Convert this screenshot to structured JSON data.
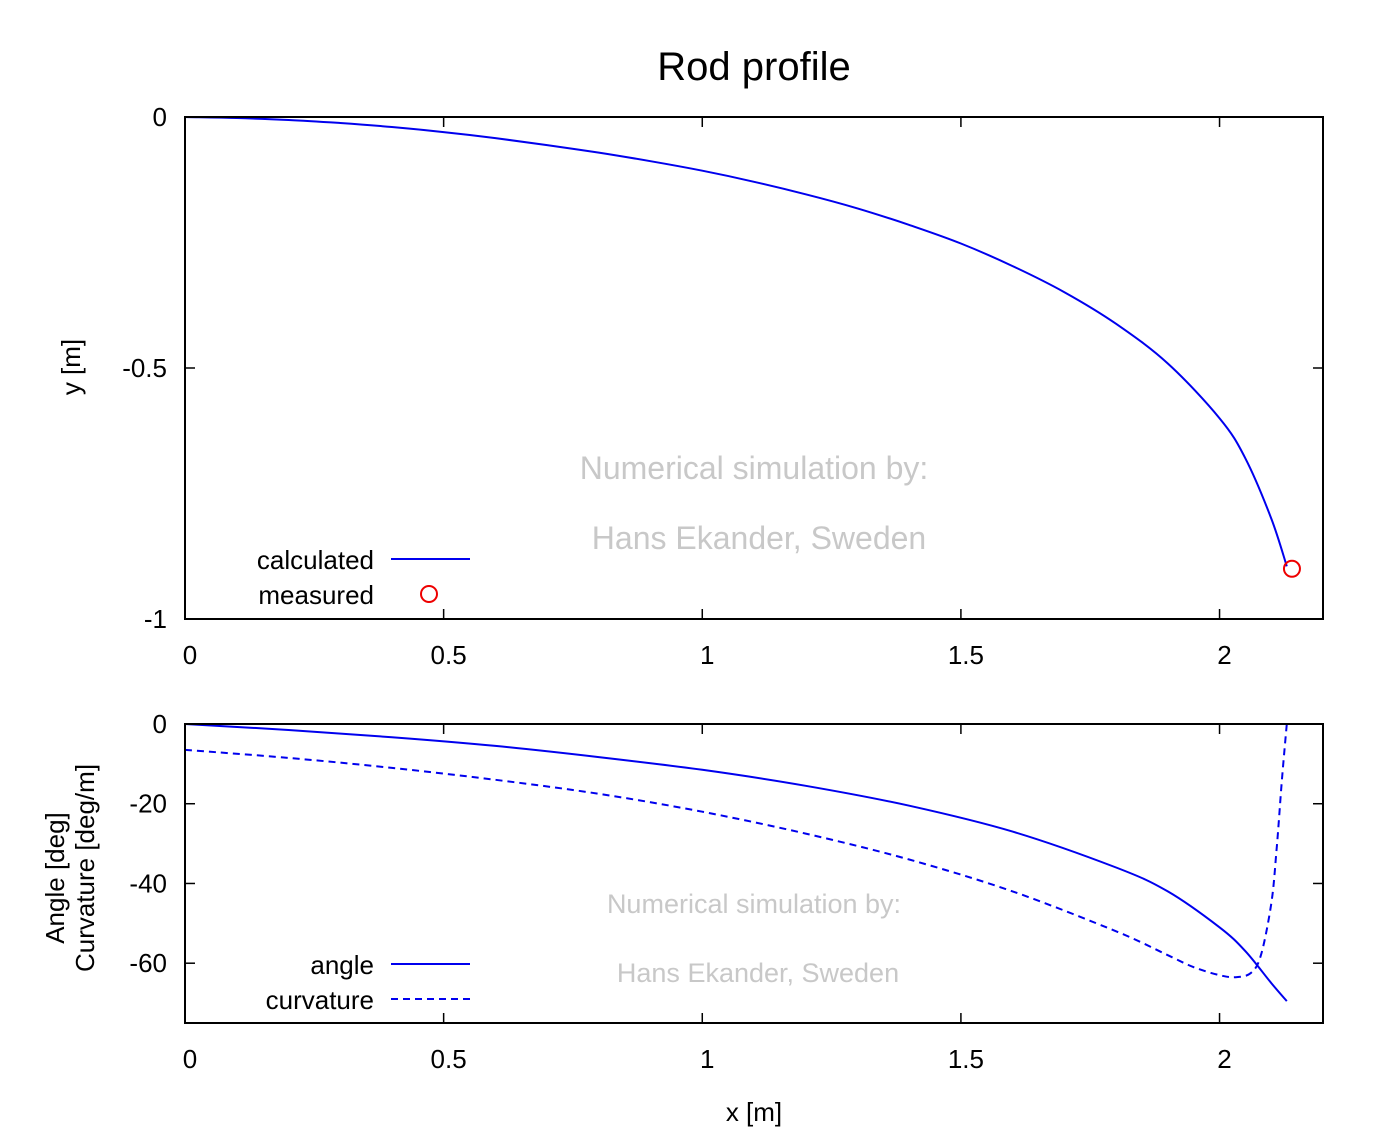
{
  "figure": {
    "title": "Rod profile",
    "xlabel": "x [m]"
  },
  "colors": {
    "series": "#0000ee",
    "marker": "#ee0000",
    "watermark": "#c8c8c8"
  },
  "chart_data": [
    {
      "type": "line",
      "ylabel": "y [m]",
      "xlim": [
        0,
        2.2
      ],
      "ylim": [
        -1,
        0
      ],
      "x_ticks": [
        "0",
        "0.5",
        "1",
        "1.5",
        "2"
      ],
      "x_tick_values": [
        0,
        0.5,
        1,
        1.5,
        2
      ],
      "y_ticks": [
        "0",
        "-0.5",
        "-1"
      ],
      "y_tick_values": [
        0,
        -0.5,
        -1
      ],
      "grid": false,
      "legend_position": "bottom-left",
      "watermark": [
        "Numerical simulation by:",
        "Hans Ekander, Sweden"
      ],
      "series": [
        {
          "name": "calculated",
          "style": "solid",
          "x": [
            0,
            0.1,
            0.2,
            0.3,
            0.4,
            0.5,
            0.6,
            0.7,
            0.8,
            0.9,
            1.0,
            1.1,
            1.2,
            1.3,
            1.4,
            1.5,
            1.6,
            1.7,
            1.8,
            1.9,
            2.0,
            2.05,
            2.1,
            2.13
          ],
          "y": [
            0,
            -0.002,
            -0.006,
            -0.012,
            -0.02,
            -0.03,
            -0.042,
            -0.056,
            -0.071,
            -0.088,
            -0.107,
            -0.129,
            -0.154,
            -0.182,
            -0.215,
            -0.252,
            -0.297,
            -0.349,
            -0.412,
            -0.491,
            -0.6,
            -0.68,
            -0.8,
            -0.895
          ]
        },
        {
          "name": "measured",
          "style": "marker-circle",
          "x": [
            2.14
          ],
          "y": [
            -0.9
          ]
        }
      ]
    },
    {
      "type": "line",
      "ylabel": [
        "Angle [deg]",
        "Curvature [deg/m]"
      ],
      "xlim": [
        0,
        2.2
      ],
      "ylim": [
        -75,
        0
      ],
      "x_ticks": [
        "0",
        "0.5",
        "1",
        "1.5",
        "2"
      ],
      "x_tick_values": [
        0,
        0.5,
        1,
        1.5,
        2
      ],
      "y_ticks": [
        "0",
        "-20",
        "-40",
        "-60"
      ],
      "y_tick_values": [
        0,
        -20,
        -40,
        -60
      ],
      "grid": false,
      "legend_position": "bottom-left",
      "watermark": [
        "Numerical simulation by:",
        "Hans Ekander, Sweden"
      ],
      "series": [
        {
          "name": "angle",
          "style": "solid",
          "x": [
            0,
            0.2,
            0.4,
            0.6,
            0.8,
            1.0,
            1.2,
            1.4,
            1.6,
            1.8,
            1.9,
            2.0,
            2.05,
            2.1,
            2.13
          ],
          "y": [
            0,
            -1.5,
            -3.3,
            -5.5,
            -8.3,
            -11.5,
            -15.5,
            -20.5,
            -27,
            -36,
            -42,
            -51,
            -57,
            -65,
            -69.5
          ]
        },
        {
          "name": "curvature",
          "style": "dashed",
          "x": [
            0,
            0.2,
            0.4,
            0.6,
            0.8,
            1.0,
            1.2,
            1.4,
            1.6,
            1.8,
            1.9,
            1.95,
            2.0,
            2.03,
            2.06,
            2.08,
            2.1,
            2.11,
            2.12,
            2.13
          ],
          "y": [
            -6.5,
            -8.5,
            -11,
            -14,
            -17.5,
            -22,
            -27.5,
            -34,
            -42,
            -52,
            -58,
            -61,
            -63,
            -63.5,
            -62.5,
            -58,
            -45,
            -32,
            -15,
            0
          ]
        }
      ]
    }
  ]
}
